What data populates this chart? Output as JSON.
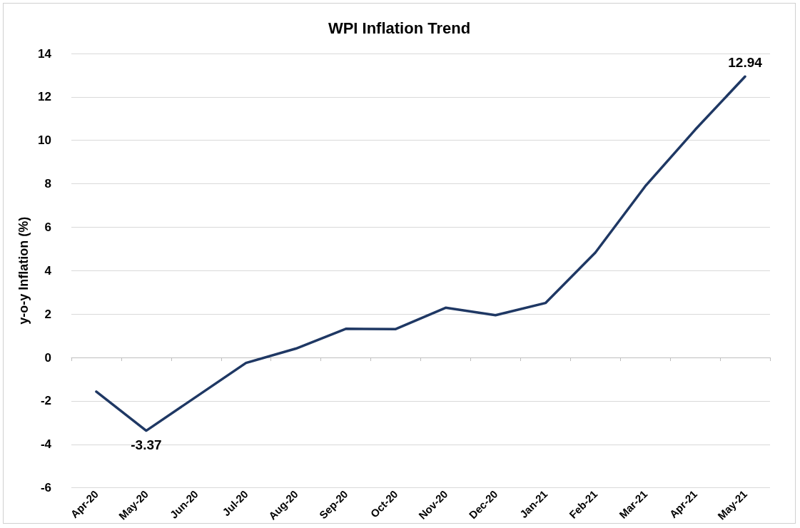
{
  "chart_data": {
    "type": "line",
    "title": "WPI Inflation Trend",
    "ylabel": "y-o-y Inflation (%)",
    "categories": [
      "Apr-20",
      "May-20",
      "Jun-20",
      "Jul-20",
      "Aug-20",
      "Sep-20",
      "Oct-20",
      "Nov-20",
      "Dec-20",
      "Jan-21",
      "Feb-21",
      "Mar-21",
      "Apr-21",
      "May-21"
    ],
    "series": [
      {
        "color": "#1f3864",
        "values": [
          -1.57,
          -3.37,
          -1.81,
          -0.25,
          0.41,
          1.32,
          1.31,
          2.29,
          1.95,
          2.51,
          4.83,
          7.89,
          10.49,
          12.94
        ],
        "value_labels": [
          null,
          "-3.37",
          null,
          null,
          null,
          null,
          null,
          null,
          null,
          null,
          null,
          null,
          null,
          "12.94"
        ]
      }
    ],
    "ylim": [
      -6,
      14
    ],
    "yticks": [
      -6,
      -4,
      -2,
      0,
      2,
      4,
      6,
      8,
      10,
      12,
      14
    ],
    "grid": "y",
    "marker": "none",
    "line_style": "solid"
  }
}
